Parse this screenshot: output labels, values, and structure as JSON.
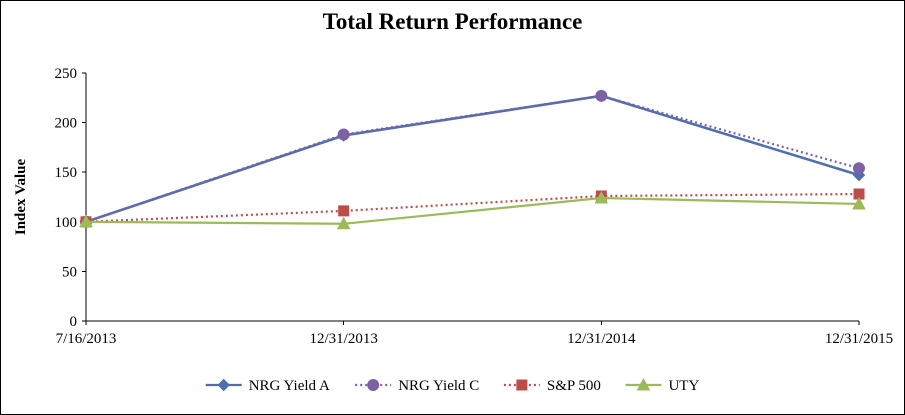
{
  "chart_data": {
    "type": "line",
    "title": "Total Return Performance",
    "ylabel": "Index Value",
    "xlabel": "",
    "ylim": [
      0,
      250
    ],
    "yticks": [
      0,
      50,
      100,
      150,
      200,
      250
    ],
    "grid": false,
    "legend_position": "bottom",
    "axis_color": "#000000",
    "categories": [
      "7/16/2013",
      "12/31/2013",
      "12/31/2014",
      "12/31/2015"
    ],
    "series": [
      {
        "name": "NRG Yield A",
        "values": [
          100,
          187,
          227,
          147
        ],
        "color": "#4f6fae",
        "marker": "diamond",
        "line_style": "solid"
      },
      {
        "name": "NRG Yield C",
        "values": [
          100,
          188,
          227,
          154
        ],
        "color": "#7d61a5",
        "marker": "circle",
        "line_style": "dotted"
      },
      {
        "name": "S&P 500",
        "values": [
          100,
          111,
          126,
          128
        ],
        "color": "#bc4d49",
        "marker": "square",
        "line_style": "dotted"
      },
      {
        "name": "UTY",
        "values": [
          100,
          98,
          124,
          118
        ],
        "color": "#9bbb59",
        "marker": "triangle",
        "line_style": "solid"
      }
    ]
  }
}
